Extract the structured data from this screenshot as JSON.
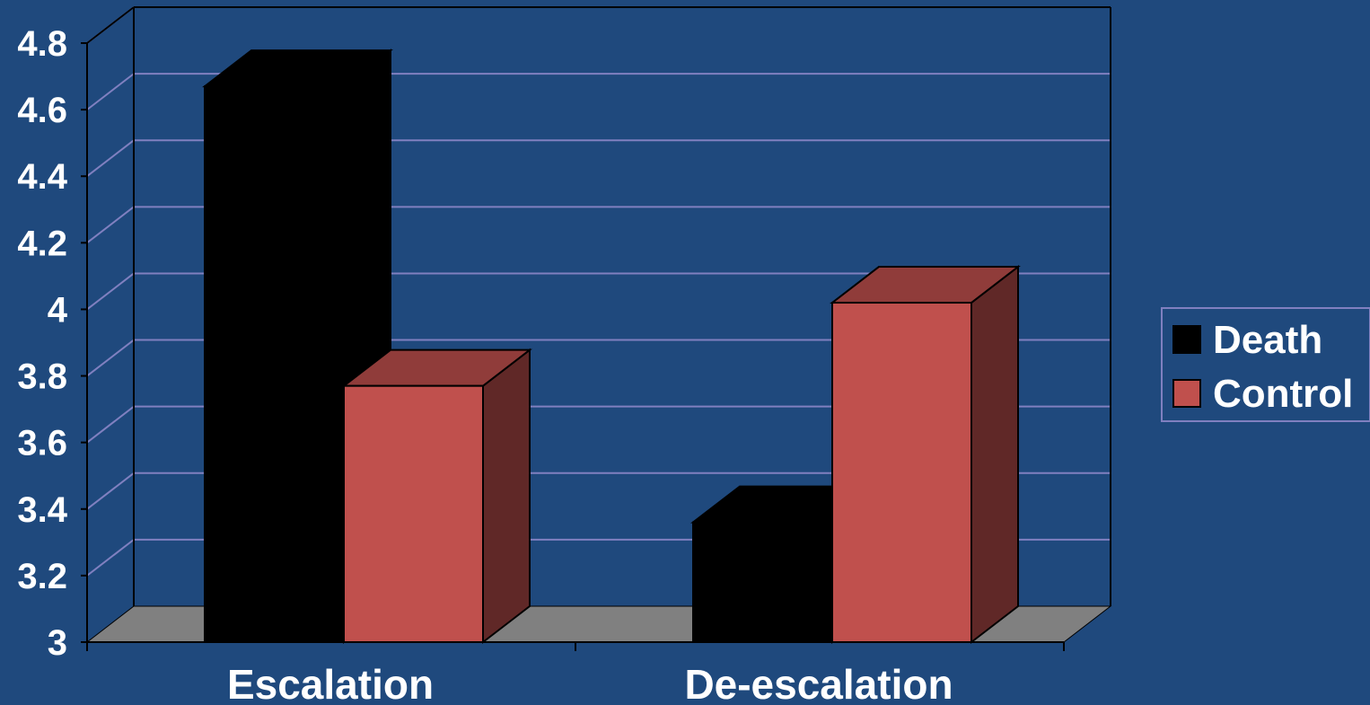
{
  "chart_data": {
    "type": "bar",
    "style": "3d-clustered-column",
    "categories": [
      "Escalation",
      "De-escalation"
    ],
    "series": [
      {
        "name": "Death",
        "values": [
          4.67,
          3.36
        ],
        "color": "#000000"
      },
      {
        "name": "Control",
        "values": [
          3.77,
          4.02
        ],
        "color": "#c0504d"
      }
    ],
    "ylim": [
      3,
      4.8
    ],
    "yticks": [
      "3",
      "3.2",
      "3.4",
      "3.6",
      "3.8",
      "4",
      "4.2",
      "4.4",
      "4.6",
      "4.8"
    ],
    "grid": true,
    "legend_position": "right",
    "colors": {
      "background": "#1f497d",
      "gridline": "#8080c0",
      "floor": "#808080",
      "axis": "#000000",
      "text": "#ffffff",
      "legend_border": "#8080c0"
    }
  }
}
